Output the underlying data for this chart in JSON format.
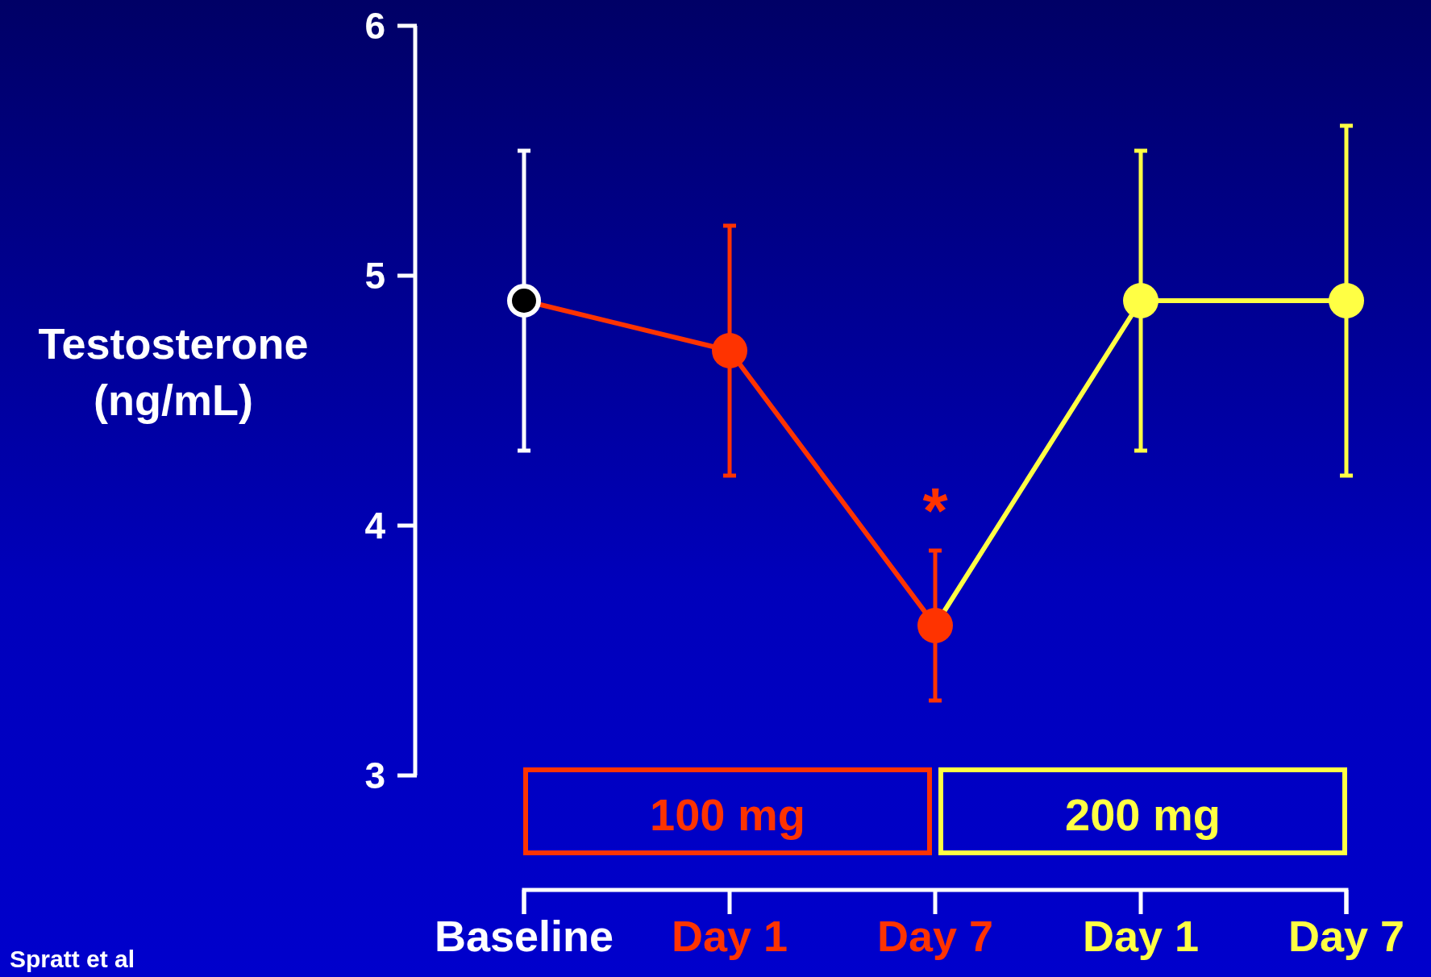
{
  "chart_data": {
    "type": "line",
    "ylabel": "Testosterone\n(ng/mL)",
    "categories": [
      "Baseline",
      "Day 1",
      "Day 7",
      "Day 1",
      "Day 7"
    ],
    "ylim": [
      3,
      6
    ],
    "yticks": [
      3,
      4,
      5,
      6
    ],
    "grid": false,
    "marker": "circle",
    "line_style": "solid",
    "series": [
      {
        "colors": [
          "#ffffff",
          "#ff3300",
          "#ff3300",
          "#ffff44",
          "#ffff44"
        ],
        "values": [
          4.9,
          4.7,
          3.6,
          4.9,
          4.9
        ],
        "errors": [
          [
            4.3,
            5.5
          ],
          [
            4.2,
            5.2
          ],
          [
            3.3,
            3.9
          ],
          [
            4.3,
            5.5
          ],
          [
            4.2,
            5.6
          ]
        ]
      }
    ],
    "annotations": [
      "*",
      "100 mg",
      "200 mg",
      "Spratt et al"
    ]
  }
}
